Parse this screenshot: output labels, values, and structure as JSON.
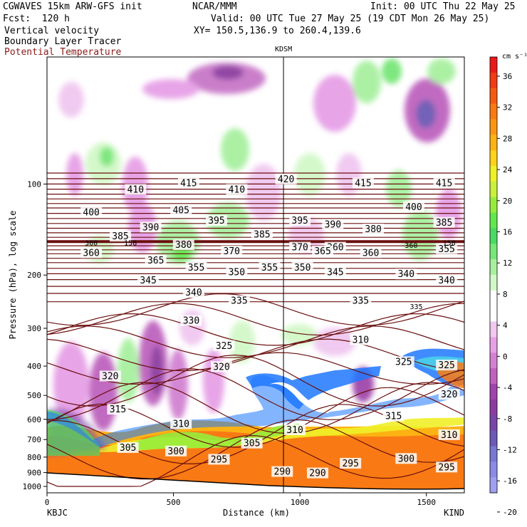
{
  "header": {
    "model": "CGWAVES 15km ARW-GFS init",
    "forecast": "Fcst:  120 h",
    "org": "NCAR/MMM",
    "init": "Init: 00 UTC Thu 22 May 25",
    "valid": "Valid: 00 UTC Tue 27 May 25 (19 CDT Mon 26 May 25)",
    "xy": "XY= 150.5,136.9 to 260.4,139.6",
    "field1": "Vertical velocity",
    "field2": "Boundary Layer Tracer",
    "field3": "Potential Temperature",
    "field3_color": "#8b1a1a"
  },
  "chart_data": {
    "type": "heatmap",
    "ylabel": "Pressure (hPa), log scale",
    "xlabel": "Distance (km)",
    "y_scale": "log",
    "y_ticks": [
      100,
      200,
      300,
      400,
      500,
      600,
      700,
      800,
      900,
      1000
    ],
    "x_ticks": [
      0,
      500,
      1000,
      1500
    ],
    "xlim": [
      0,
      1650
    ],
    "left_station": "KBJC",
    "right_station": "KIND",
    "marker_station": "KDSM",
    "marker_distance": 935,
    "colorbar": {
      "unit": "cm s⁻¹",
      "tick_values": [
        36,
        32,
        28,
        24,
        20,
        16,
        12,
        8,
        4,
        0,
        -4,
        -8,
        -12,
        -16,
        -20
      ],
      "colors": [
        "#e81a1a",
        "#f03b14",
        "#f55a14",
        "#f97a14",
        "#fb9614",
        "#fdb214",
        "#ffd21e",
        "#f0f028",
        "#c8f03c",
        "#96ec3c",
        "#64e650",
        "#4cd864",
        "#78e678",
        "#a8f0a0",
        "#d2f8c8",
        "#ffffff",
        "#ffffff",
        "#f0c8f0",
        "#e6a0e6",
        "#d282d2",
        "#be64be",
        "#a046aa",
        "#8c3ca0",
        "#7846a8",
        "#6c5ab4",
        "#7878d2",
        "#8c8ce6",
        "#a0a0f0"
      ]
    },
    "theta_contour_labels": [
      {
        "value": "410",
        "x": 350,
        "p": 105
      },
      {
        "value": "415",
        "x": 560,
        "p": 100
      },
      {
        "value": "410",
        "x": 750,
        "p": 105
      },
      {
        "value": "420",
        "x": 945,
        "p": 97
      },
      {
        "value": "415",
        "x": 1250,
        "p": 100
      },
      {
        "value": "415",
        "x": 1570,
        "p": 100
      },
      {
        "value": "400",
        "x": 175,
        "p": 125
      },
      {
        "value": "405",
        "x": 530,
        "p": 123
      },
      {
        "value": "400",
        "x": 1450,
        "p": 120
      },
      {
        "value": "390",
        "x": 410,
        "p": 140
      },
      {
        "value": "395",
        "x": 670,
        "p": 133
      },
      {
        "value": "395",
        "x": 1000,
        "p": 133
      },
      {
        "value": "390",
        "x": 1130,
        "p": 137
      },
      {
        "value": "380",
        "x": 1290,
        "p": 142
      },
      {
        "value": "385",
        "x": 1570,
        "p": 135
      },
      {
        "value": "385",
        "x": 290,
        "p": 150
      },
      {
        "value": "385",
        "x": 850,
        "p": 148
      },
      {
        "value": "380",
        "x": 540,
        "p": 160
      },
      {
        "value": "360",
        "x": 175,
        "p": 170
      },
      {
        "value": "360",
        "x": 1140,
        "p": 163
      },
      {
        "value": "355",
        "x": 1580,
        "p": 165
      },
      {
        "value": "370",
        "x": 730,
        "p": 168
      },
      {
        "value": "370",
        "x": 1000,
        "p": 163
      },
      {
        "value": "365",
        "x": 1090,
        "p": 168
      },
      {
        "value": "360",
        "x": 1280,
        "p": 170
      },
      {
        "value": "365",
        "x": 430,
        "p": 180
      },
      {
        "value": "355",
        "x": 590,
        "p": 190
      },
      {
        "value": "350",
        "x": 750,
        "p": 197
      },
      {
        "value": "355",
        "x": 880,
        "p": 190
      },
      {
        "value": "350",
        "x": 1010,
        "p": 190
      },
      {
        "value": "345",
        "x": 1140,
        "p": 197
      },
      {
        "value": "340",
        "x": 1420,
        "p": 200
      },
      {
        "value": "340",
        "x": 1580,
        "p": 210
      },
      {
        "value": "345",
        "x": 400,
        "p": 210
      },
      {
        "value": "340",
        "x": 580,
        "p": 230
      },
      {
        "value": "335",
        "x": 760,
        "p": 245
      },
      {
        "value": "335",
        "x": 1240,
        "p": 245
      },
      {
        "value": "330",
        "x": 570,
        "p": 285
      },
      {
        "value": "325",
        "x": 700,
        "p": 345
      },
      {
        "value": "320",
        "x": 250,
        "p": 435
      },
      {
        "value": "320",
        "x": 690,
        "p": 405
      },
      {
        "value": "310",
        "x": 1240,
        "p": 330
      },
      {
        "value": "325",
        "x": 1410,
        "p": 390
      },
      {
        "value": "325",
        "x": 1580,
        "p": 400
      },
      {
        "value": "320",
        "x": 1590,
        "p": 500
      },
      {
        "value": "315",
        "x": 280,
        "p": 560
      },
      {
        "value": "315",
        "x": 1370,
        "p": 590
      },
      {
        "value": "310",
        "x": 530,
        "p": 625
      },
      {
        "value": "310",
        "x": 980,
        "p": 655
      },
      {
        "value": "310",
        "x": 1590,
        "p": 680
      },
      {
        "value": "305",
        "x": 320,
        "p": 750
      },
      {
        "value": "300",
        "x": 510,
        "p": 770
      },
      {
        "value": "305",
        "x": 810,
        "p": 725
      },
      {
        "value": "295",
        "x": 680,
        "p": 820
      },
      {
        "value": "300",
        "x": 1420,
        "p": 815
      },
      {
        "value": "295",
        "x": 1200,
        "p": 845
      },
      {
        "value": "295",
        "x": 1580,
        "p": 870
      },
      {
        "value": "290",
        "x": 930,
        "p": 900
      },
      {
        "value": "290",
        "x": 1070,
        "p": 910
      }
    ],
    "small_labels": [
      {
        "value": "360",
        "x": 175,
        "p": 157
      },
      {
        "value": "158",
        "x": 330,
        "p": 157
      },
      {
        "value": "360",
        "x": 1440,
        "p": 160
      },
      {
        "value": "158",
        "x": 1590,
        "p": 157
      },
      {
        "value": "335",
        "x": 1460,
        "p": 255
      }
    ]
  }
}
